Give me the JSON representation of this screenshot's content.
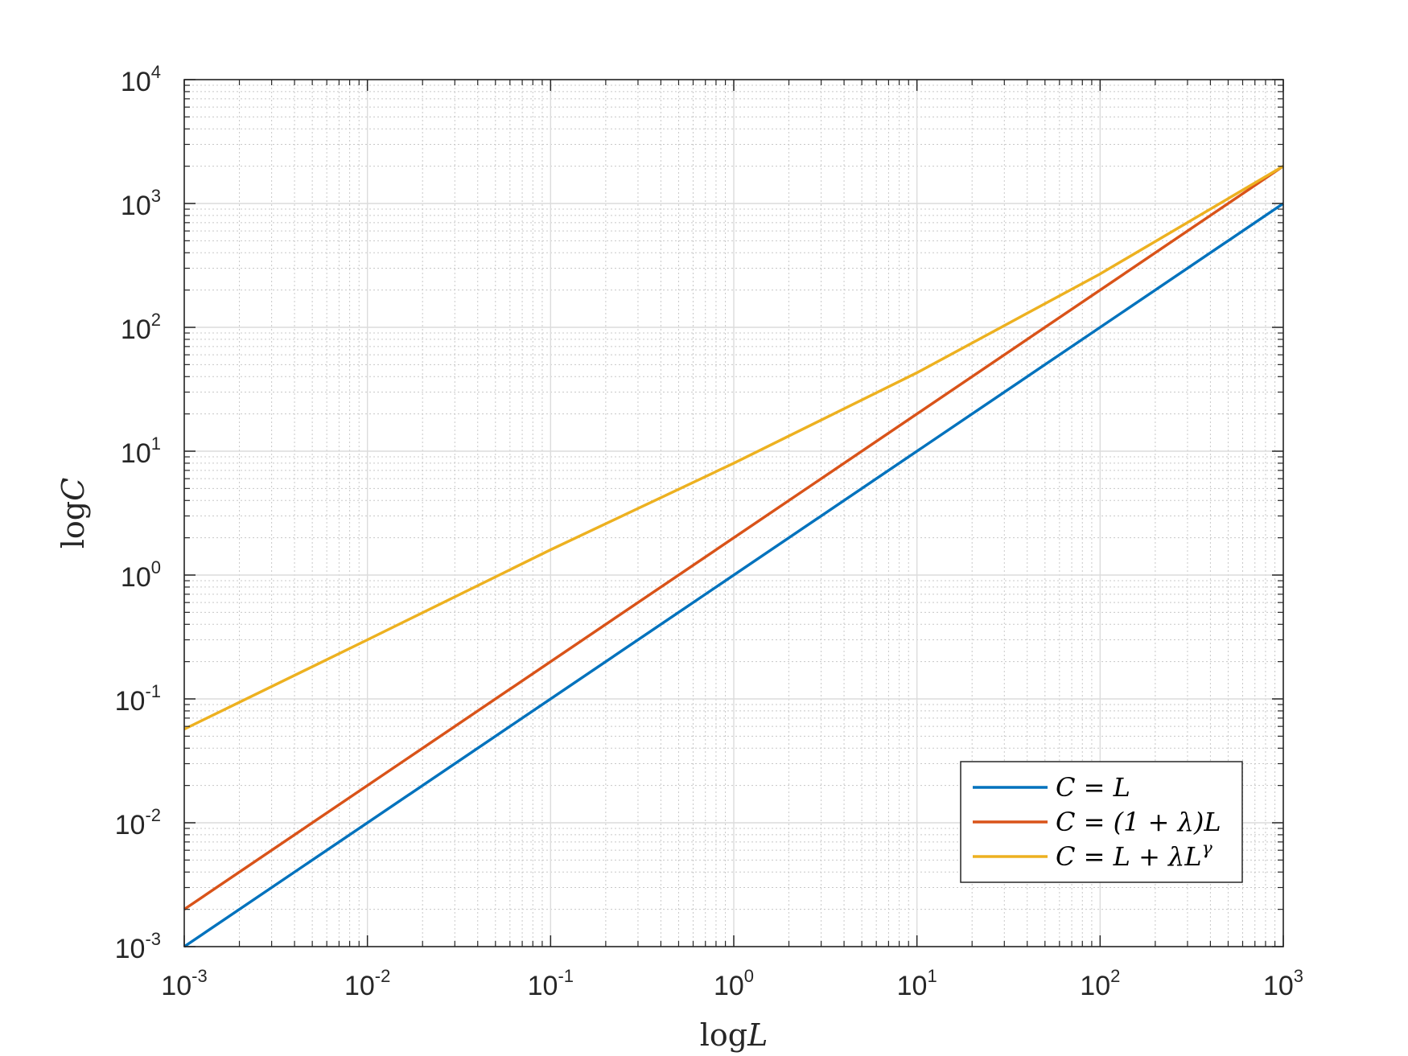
{
  "chart_data": {
    "type": "line",
    "xscale": "log",
    "yscale": "log",
    "xlim": [
      0.001,
      1000
    ],
    "ylim": [
      0.001,
      10000
    ],
    "xlabel": "log L",
    "ylabel": "log C",
    "grid": true,
    "minor_grid": true,
    "legend_position": "bottom-right",
    "x_ticks": [
      {
        "base": "10",
        "exp": "-3"
      },
      {
        "base": "10",
        "exp": "-2"
      },
      {
        "base": "10",
        "exp": "-1"
      },
      {
        "base": "10",
        "exp": "0"
      },
      {
        "base": "10",
        "exp": "1"
      },
      {
        "base": "10",
        "exp": "2"
      },
      {
        "base": "10",
        "exp": "3"
      }
    ],
    "y_ticks": [
      {
        "base": "10",
        "exp": "-3"
      },
      {
        "base": "10",
        "exp": "-2"
      },
      {
        "base": "10",
        "exp": "-1"
      },
      {
        "base": "10",
        "exp": "0"
      },
      {
        "base": "10",
        "exp": "1"
      },
      {
        "base": "10",
        "exp": "2"
      },
      {
        "base": "10",
        "exp": "3"
      },
      {
        "base": "10",
        "exp": "4"
      }
    ],
    "series": [
      {
        "name": "C = L",
        "color": "#0072BD",
        "x": [
          0.001,
          1000
        ],
        "y": [
          0.001,
          1000
        ]
      },
      {
        "name": "C = (1 + λ)L",
        "color": "#D95319",
        "x": [
          0.001,
          1000
        ],
        "y": [
          0.002,
          2000
        ]
      },
      {
        "name": "C = L + λL^γ",
        "color": "#EDB120",
        "x": [
          0.001,
          0.01,
          0.1,
          1,
          10,
          100,
          1000
        ],
        "y": [
          0.057,
          0.3,
          1.6,
          8,
          43,
          270,
          2000
        ]
      }
    ]
  }
}
